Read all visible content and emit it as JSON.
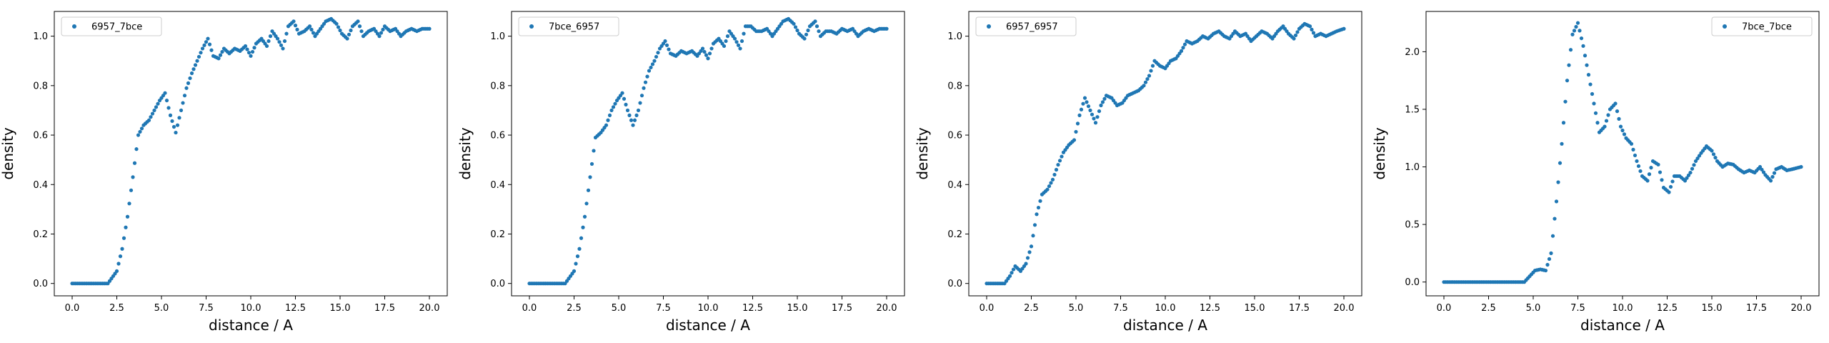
{
  "figure": {
    "background": "#ffffff",
    "marker_color": "#1f77b4"
  },
  "chart_data": [
    {
      "type": "scatter",
      "xlabel": "distance / A",
      "ylabel": "density",
      "xlim": [
        -1.0,
        21.0
      ],
      "ylim": [
        -0.05,
        1.1
      ],
      "xticks": [
        0.0,
        2.5,
        5.0,
        7.5,
        10.0,
        12.5,
        15.0,
        17.5,
        20.0
      ],
      "xtick_labels": [
        "0.0",
        "2.5",
        "5.0",
        "7.5",
        "10.0",
        "12.5",
        "15.0",
        "17.5",
        "20.0"
      ],
      "yticks": [
        0.0,
        0.2,
        0.4,
        0.6,
        0.8,
        1.0
      ],
      "ytick_labels": [
        "0.0",
        "0.2",
        "0.4",
        "0.6",
        "0.8",
        "1.0"
      ],
      "legend_position": "top-left",
      "series": [
        {
          "name": "6957_7bce",
          "color": "#1f77b4",
          "x": [
            0.0,
            0.5,
            1.0,
            1.5,
            2.0,
            2.5,
            2.8,
            3.1,
            3.4,
            3.7,
            4.0,
            4.3,
            4.6,
            4.9,
            5.2,
            5.5,
            5.8,
            6.1,
            6.4,
            6.7,
            7.0,
            7.3,
            7.6,
            7.9,
            8.2,
            8.5,
            8.8,
            9.1,
            9.4,
            9.7,
            10.0,
            10.3,
            10.6,
            10.9,
            11.2,
            11.5,
            11.8,
            12.1,
            12.4,
            12.7,
            13.0,
            13.3,
            13.6,
            13.9,
            14.2,
            14.5,
            14.8,
            15.1,
            15.4,
            15.7,
            16.0,
            16.3,
            16.6,
            16.9,
            17.2,
            17.5,
            17.8,
            18.1,
            18.4,
            18.7,
            19.0,
            19.3,
            19.6,
            20.0
          ],
          "y": [
            0.0,
            0.0,
            0.0,
            0.0,
            0.0,
            0.05,
            0.14,
            0.27,
            0.43,
            0.6,
            0.64,
            0.66,
            0.7,
            0.74,
            0.77,
            0.68,
            0.61,
            0.7,
            0.79,
            0.85,
            0.9,
            0.95,
            0.99,
            0.92,
            0.91,
            0.95,
            0.93,
            0.95,
            0.94,
            0.96,
            0.92,
            0.97,
            0.99,
            0.96,
            1.02,
            0.99,
            0.95,
            1.04,
            1.06,
            1.01,
            1.02,
            1.04,
            1.0,
            1.03,
            1.06,
            1.07,
            1.05,
            1.01,
            0.99,
            1.04,
            1.06,
            1.0,
            1.02,
            1.03,
            1.0,
            1.04,
            1.02,
            1.03,
            1.0,
            1.02,
            1.03,
            1.02,
            1.03,
            1.03
          ]
        }
      ]
    },
    {
      "type": "scatter",
      "xlabel": "distance / A",
      "ylabel": "density",
      "xlim": [
        -1.0,
        21.0
      ],
      "ylim": [
        -0.05,
        1.1
      ],
      "xticks": [
        0.0,
        2.5,
        5.0,
        7.5,
        10.0,
        12.5,
        15.0,
        17.5,
        20.0
      ],
      "xtick_labels": [
        "0.0",
        "2.5",
        "5.0",
        "7.5",
        "10.0",
        "12.5",
        "15.0",
        "17.5",
        "20.0"
      ],
      "yticks": [
        0.0,
        0.2,
        0.4,
        0.6,
        0.8,
        1.0
      ],
      "ytick_labels": [
        "0.0",
        "0.2",
        "0.4",
        "0.6",
        "0.8",
        "1.0"
      ],
      "legend_position": "top-left",
      "series": [
        {
          "name": "7bce_6957",
          "color": "#1f77b4",
          "x": [
            0.0,
            0.5,
            1.0,
            1.5,
            2.0,
            2.5,
            2.8,
            3.1,
            3.4,
            3.7,
            4.0,
            4.3,
            4.6,
            4.9,
            5.2,
            5.5,
            5.8,
            6.1,
            6.4,
            6.7,
            7.0,
            7.3,
            7.6,
            7.9,
            8.2,
            8.5,
            8.8,
            9.1,
            9.4,
            9.7,
            10.0,
            10.3,
            10.6,
            10.9,
            11.2,
            11.5,
            11.8,
            12.1,
            12.4,
            12.7,
            13.0,
            13.3,
            13.6,
            13.9,
            14.2,
            14.5,
            14.8,
            15.1,
            15.4,
            15.7,
            16.0,
            16.3,
            16.6,
            16.9,
            17.2,
            17.5,
            17.8,
            18.1,
            18.4,
            18.7,
            19.0,
            19.3,
            19.6,
            20.0
          ],
          "y": [
            0.0,
            0.0,
            0.0,
            0.0,
            0.0,
            0.05,
            0.14,
            0.27,
            0.43,
            0.59,
            0.61,
            0.64,
            0.7,
            0.74,
            0.77,
            0.7,
            0.64,
            0.7,
            0.79,
            0.86,
            0.9,
            0.95,
            0.98,
            0.93,
            0.92,
            0.94,
            0.93,
            0.94,
            0.92,
            0.95,
            0.91,
            0.97,
            0.99,
            0.96,
            1.02,
            0.99,
            0.95,
            1.04,
            1.04,
            1.02,
            1.02,
            1.03,
            1.0,
            1.03,
            1.06,
            1.07,
            1.05,
            1.01,
            0.99,
            1.04,
            1.06,
            1.0,
            1.02,
            1.02,
            1.01,
            1.03,
            1.02,
            1.03,
            1.0,
            1.02,
            1.03,
            1.02,
            1.03,
            1.03
          ]
        }
      ]
    },
    {
      "type": "scatter",
      "xlabel": "distance / A",
      "ylabel": "density",
      "xlim": [
        -1.0,
        21.0
      ],
      "ylim": [
        -0.05,
        1.1
      ],
      "xticks": [
        0.0,
        2.5,
        5.0,
        7.5,
        10.0,
        12.5,
        15.0,
        17.5,
        20.0
      ],
      "xtick_labels": [
        "0.0",
        "2.5",
        "5.0",
        "7.5",
        "10.0",
        "12.5",
        "15.0",
        "17.5",
        "20.0"
      ],
      "yticks": [
        0.0,
        0.2,
        0.4,
        0.6,
        0.8,
        1.0
      ],
      "ytick_labels": [
        "0.0",
        "0.2",
        "0.4",
        "0.6",
        "0.8",
        "1.0"
      ],
      "legend_position": "top-left",
      "series": [
        {
          "name": "6957_6957",
          "color": "#1f77b4",
          "x": [
            0.0,
            0.5,
            1.0,
            1.3,
            1.6,
            1.9,
            2.2,
            2.5,
            2.8,
            3.1,
            3.4,
            3.7,
            4.0,
            4.3,
            4.6,
            4.9,
            5.2,
            5.5,
            5.8,
            6.1,
            6.4,
            6.7,
            7.0,
            7.3,
            7.6,
            7.9,
            8.2,
            8.5,
            8.8,
            9.1,
            9.4,
            9.7,
            10.0,
            10.3,
            10.6,
            10.9,
            11.2,
            11.5,
            11.8,
            12.1,
            12.4,
            12.7,
            13.0,
            13.3,
            13.6,
            13.9,
            14.2,
            14.5,
            14.8,
            15.1,
            15.4,
            15.7,
            16.0,
            16.3,
            16.6,
            16.9,
            17.2,
            17.5,
            17.8,
            18.1,
            18.4,
            18.7,
            19.0,
            19.3,
            19.6,
            20.0
          ],
          "y": [
            0.0,
            0.0,
            0.0,
            0.03,
            0.07,
            0.05,
            0.08,
            0.15,
            0.28,
            0.36,
            0.38,
            0.42,
            0.48,
            0.53,
            0.56,
            0.58,
            0.68,
            0.75,
            0.7,
            0.65,
            0.72,
            0.76,
            0.75,
            0.72,
            0.73,
            0.76,
            0.77,
            0.78,
            0.8,
            0.84,
            0.9,
            0.88,
            0.87,
            0.9,
            0.91,
            0.94,
            0.98,
            0.97,
            0.98,
            1.0,
            0.99,
            1.01,
            1.02,
            1.0,
            0.99,
            1.02,
            1.0,
            1.01,
            0.98,
            1.0,
            1.02,
            1.01,
            0.99,
            1.02,
            1.04,
            1.01,
            0.99,
            1.03,
            1.05,
            1.04,
            1.0,
            1.01,
            1.0,
            1.01,
            1.02,
            1.03
          ]
        }
      ]
    },
    {
      "type": "scatter",
      "xlabel": "distance / A",
      "ylabel": "density",
      "xlim": [
        -1.0,
        21.0
      ],
      "ylim": [
        -0.12,
        2.35
      ],
      "xticks": [
        0.0,
        2.5,
        5.0,
        7.5,
        10.0,
        12.5,
        15.0,
        17.5,
        20.0
      ],
      "xtick_labels": [
        "0.0",
        "2.5",
        "5.0",
        "7.5",
        "10.0",
        "12.5",
        "15.0",
        "17.5",
        "20.0"
      ],
      "yticks": [
        0.0,
        0.5,
        1.0,
        1.5,
        2.0
      ],
      "ytick_labels": [
        "0.0",
        "0.5",
        "1.0",
        "1.5",
        "2.0"
      ],
      "legend_position": "top-right",
      "series": [
        {
          "name": "7bce_7bce",
          "color": "#1f77b4",
          "x": [
            0.0,
            0.5,
            1.0,
            1.5,
            2.0,
            2.5,
            3.0,
            3.5,
            4.0,
            4.5,
            4.8,
            5.1,
            5.4,
            5.7,
            6.0,
            6.3,
            6.6,
            6.9,
            7.2,
            7.5,
            7.8,
            8.1,
            8.4,
            8.7,
            9.0,
            9.3,
            9.6,
            9.9,
            10.2,
            10.5,
            10.8,
            11.1,
            11.4,
            11.7,
            12.0,
            12.3,
            12.6,
            12.9,
            13.2,
            13.5,
            13.8,
            14.1,
            14.4,
            14.7,
            15.0,
            15.3,
            15.6,
            15.9,
            16.2,
            16.5,
            16.8,
            17.1,
            17.4,
            17.7,
            18.0,
            18.3,
            18.6,
            18.9,
            19.2,
            19.5,
            20.0
          ],
          "y": [
            0.0,
            0.0,
            0.0,
            0.0,
            0.0,
            0.0,
            0.0,
            0.0,
            0.0,
            0.0,
            0.05,
            0.1,
            0.11,
            0.1,
            0.25,
            0.7,
            1.2,
            1.75,
            2.15,
            2.25,
            2.05,
            1.8,
            1.55,
            1.3,
            1.35,
            1.5,
            1.55,
            1.35,
            1.25,
            1.2,
            1.05,
            0.92,
            0.88,
            1.05,
            1.02,
            0.82,
            0.78,
            0.92,
            0.92,
            0.88,
            0.95,
            1.05,
            1.12,
            1.18,
            1.14,
            1.05,
            1.0,
            1.03,
            1.02,
            0.98,
            0.95,
            0.97,
            0.95,
            1.0,
            0.93,
            0.88,
            0.98,
            1.0,
            0.97,
            0.98,
            1.0
          ]
        }
      ]
    }
  ]
}
